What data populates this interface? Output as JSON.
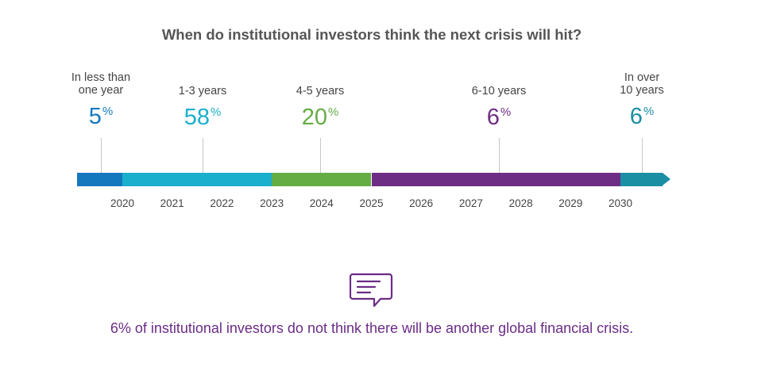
{
  "chart_data": {
    "type": "timeline",
    "title": "When do institutional investors think the next crisis will hit?",
    "x_axis": {
      "ticks": [
        "2020",
        "2021",
        "2022",
        "2023",
        "2024",
        "2025",
        "2026",
        "2027",
        "2028",
        "2029",
        "2030"
      ]
    },
    "categories": [
      {
        "label_lines": [
          "In less than",
          "one year"
        ],
        "value": "5",
        "unit": "%",
        "color": "#1478be",
        "start": 2019.1,
        "end": 2020
      },
      {
        "label_lines": [
          "1-3 years"
        ],
        "value": "58",
        "unit": "%",
        "color": "#1aafcc",
        "start": 2020,
        "end": 2023
      },
      {
        "label_lines": [
          "4-5 years"
        ],
        "value": "20",
        "unit": "%",
        "color": "#64ad45",
        "start": 2023,
        "end": 2025
      },
      {
        "label_lines": [
          "6-10 years"
        ],
        "value": "6",
        "unit": "%",
        "color": "#6e2d84",
        "start": 2025,
        "end": 2030
      },
      {
        "label_lines": [
          "In over",
          "10 years"
        ],
        "value": "6",
        "unit": "%",
        "color": "#1a8fa3",
        "start": 2030,
        "end": 2031
      }
    ],
    "footnote": "6% of institutional investors do not think there will be another global financial crisis.",
    "icon": "chat-note-icon"
  }
}
